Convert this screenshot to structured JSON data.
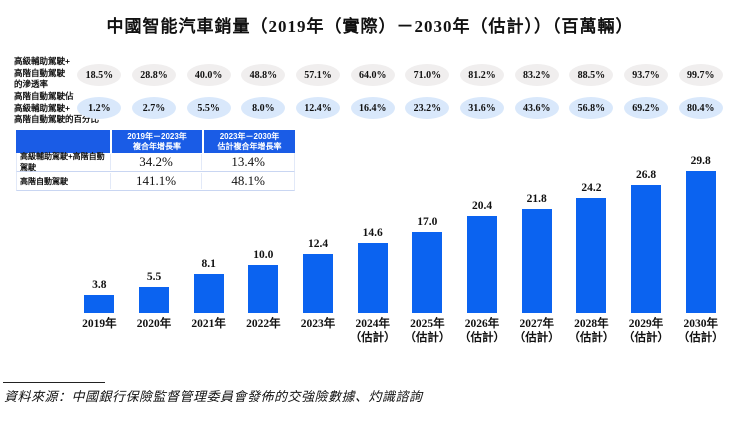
{
  "title": "中國智能汽車銷量（2019年（實際）－2030年（估計））（百萬輛）",
  "penetration": {
    "row1_label_lines": [
      "高級輔助駕駛+",
      "高階自動駕駛",
      "的滲透率"
    ],
    "row1_values": [
      "18.5%",
      "28.8%",
      "40.0%",
      "48.8%",
      "57.1%",
      "64.0%",
      "71.0%",
      "81.2%",
      "83.2%",
      "88.5%",
      "93.7%",
      "99.7%"
    ],
    "row2_label_lines": [
      "高階自動駕駛佔",
      "高級輔助駕駛+",
      "高階自動駕駛的百分比"
    ],
    "row2_values": [
      "1.2%",
      "2.7%",
      "5.5%",
      "8.0%",
      "12.4%",
      "16.4%",
      "23.2%",
      "31.6%",
      "43.6%",
      "56.8%",
      "69.2%",
      "80.4%"
    ]
  },
  "cagr_table": {
    "columns": [
      {
        "line1": "2019年－2023年",
        "line2": "複合年增長率"
      },
      {
        "line1": "2023年－2030年",
        "line2": "估計複合年增長率"
      }
    ],
    "rows": [
      {
        "label": "高級輔助駕駛+高階自動駕駛",
        "values": [
          "34.2%",
          "13.4%"
        ]
      },
      {
        "label": "高階自動駕駛",
        "values": [
          "141.1%",
          "48.1%"
        ]
      }
    ]
  },
  "chart_data": {
    "type": "bar",
    "title": "中國智能汽車銷量（2019年（實際）－2030年（估計））（百萬輛）",
    "unit": "百萬輛",
    "categories": [
      "2019年",
      "2020年",
      "2021年",
      "2022年",
      "2023年",
      "2024年（估計）",
      "2025年（估計）",
      "2026年（估計）",
      "2027年（估計）",
      "2028年（估計）",
      "2029年（估計）",
      "2030年（估計）"
    ],
    "tick_line1": [
      "2019年",
      "2020年",
      "2021年",
      "2022年",
      "2023年",
      "2024年",
      "2025年",
      "2026年",
      "2027年",
      "2028年",
      "2029年",
      "2030年"
    ],
    "tick_line2": [
      "",
      "",
      "",
      "",
      "",
      "（估計）",
      "（估計）",
      "（估計）",
      "（估計）",
      "（估計）",
      "（估計）",
      "（估計）"
    ],
    "values": [
      3.8,
      5.5,
      8.1,
      10.0,
      12.4,
      14.6,
      17.0,
      20.4,
      21.8,
      24.2,
      26.8,
      29.8
    ],
    "value_labels": [
      "3.8",
      "5.5",
      "8.1",
      "10.0",
      "12.4",
      "14.6",
      "17.0",
      "20.4",
      "21.8",
      "24.2",
      "26.8",
      "29.8"
    ],
    "ylim": [
      0,
      30
    ],
    "grid": false,
    "legend": false,
    "bar_color": "#0b63f0"
  },
  "colors": {
    "bar_blue": "#0b63f0",
    "table_header_blue": "#1a5ce6",
    "oval_gray": "#f0eeee",
    "oval_blue": "#d9e8fb"
  },
  "source": "資料來源：中國銀行保險監督管理委員會發佈的交強險數據、灼識諮詢"
}
